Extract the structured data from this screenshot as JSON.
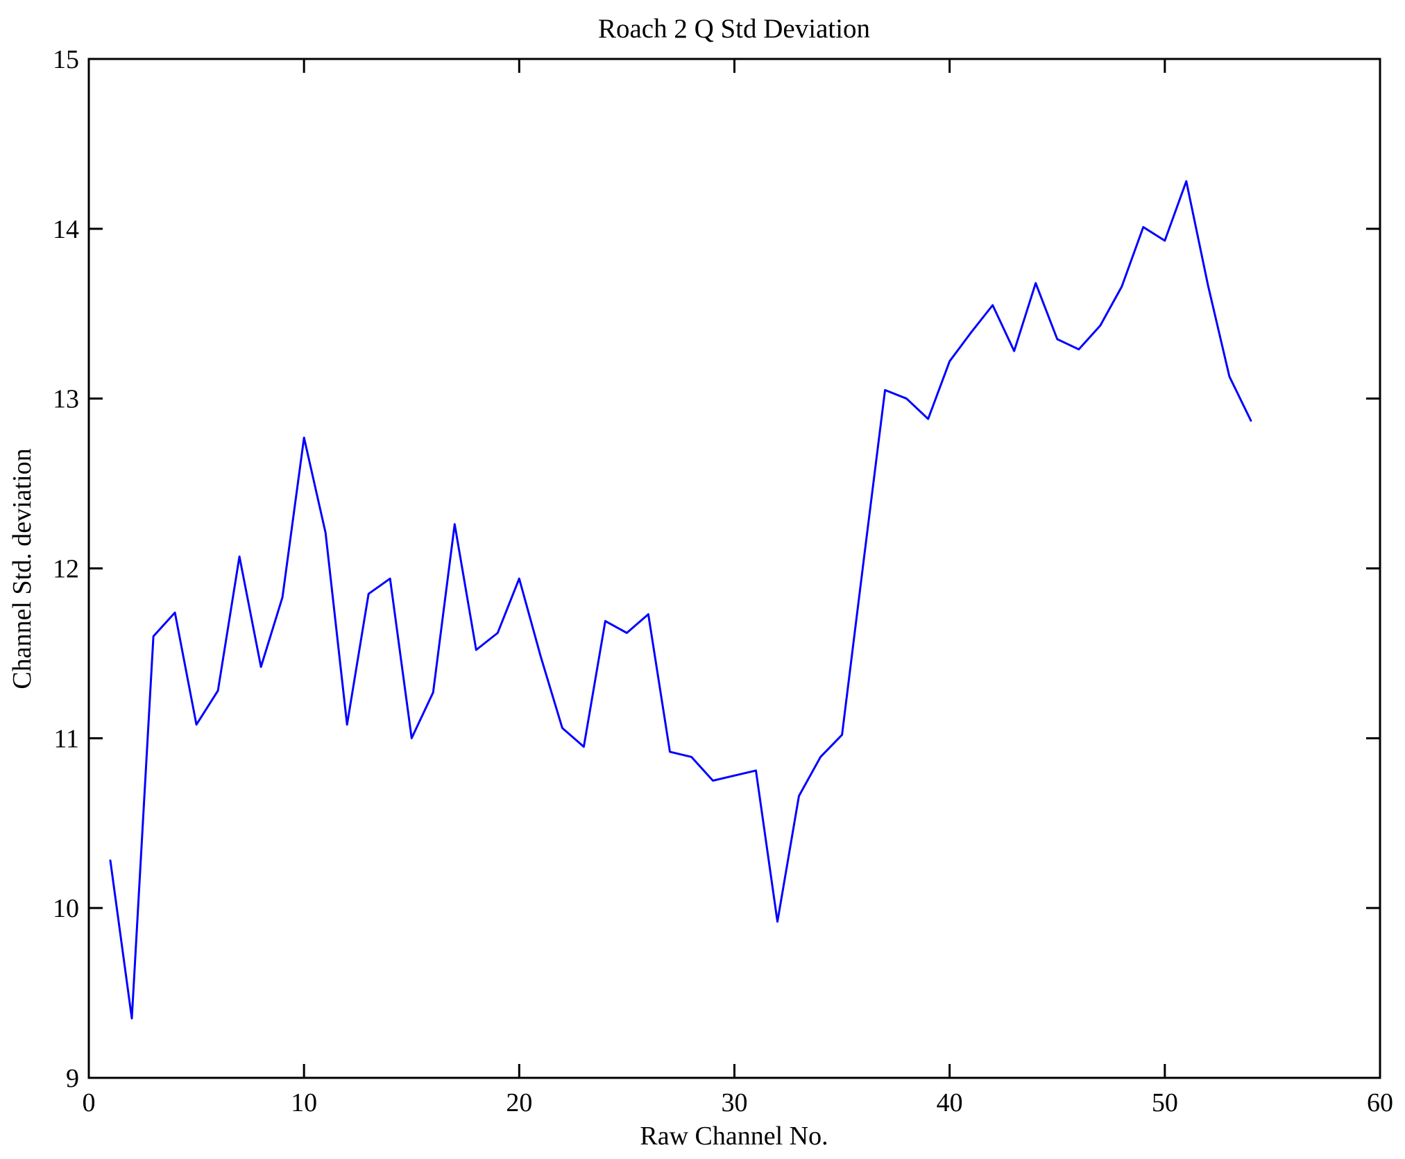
{
  "chart_data": {
    "type": "line",
    "title": "Roach 2 Q Std Deviation",
    "xlabel": "Raw Channel No.",
    "ylabel": "Channel Std. deviation",
    "xlim": [
      0,
      60
    ],
    "ylim": [
      9,
      15
    ],
    "xticks": [
      0,
      10,
      20,
      30,
      40,
      50,
      60
    ],
    "yticks": [
      9,
      10,
      11,
      12,
      13,
      14,
      15
    ],
    "grid": false,
    "legend": null,
    "line_color": "#0000FF",
    "axis_color": "#000000",
    "background_color": "#FFFFFF",
    "series": [
      {
        "name": "Channel Std. deviation",
        "x": [
          1,
          2,
          3,
          4,
          5,
          6,
          7,
          8,
          9,
          10,
          11,
          12,
          13,
          14,
          15,
          16,
          17,
          18,
          19,
          20,
          21,
          22,
          23,
          24,
          25,
          26,
          27,
          28,
          29,
          30,
          31,
          32,
          33,
          34,
          35,
          36,
          37,
          38,
          39,
          40,
          41,
          42,
          43,
          44,
          45,
          46,
          47,
          48,
          49,
          50,
          51,
          52,
          53,
          54
        ],
        "y": [
          10.28,
          9.35,
          11.6,
          11.74,
          11.08,
          11.28,
          12.07,
          11.42,
          11.83,
          12.77,
          12.21,
          11.08,
          11.85,
          11.94,
          11.0,
          11.27,
          12.26,
          11.52,
          11.62,
          11.94,
          11.48,
          11.06,
          10.95,
          11.69,
          11.62,
          11.73,
          10.92,
          10.89,
          10.75,
          10.78,
          10.81,
          9.92,
          10.66,
          10.89,
          11.02,
          12.04,
          13.05,
          13.0,
          12.88,
          13.22,
          13.39,
          13.55,
          13.28,
          13.68,
          13.35,
          13.29,
          13.43,
          13.66,
          14.01,
          13.93,
          14.28,
          13.67,
          13.13,
          12.87
        ]
      }
    ]
  }
}
